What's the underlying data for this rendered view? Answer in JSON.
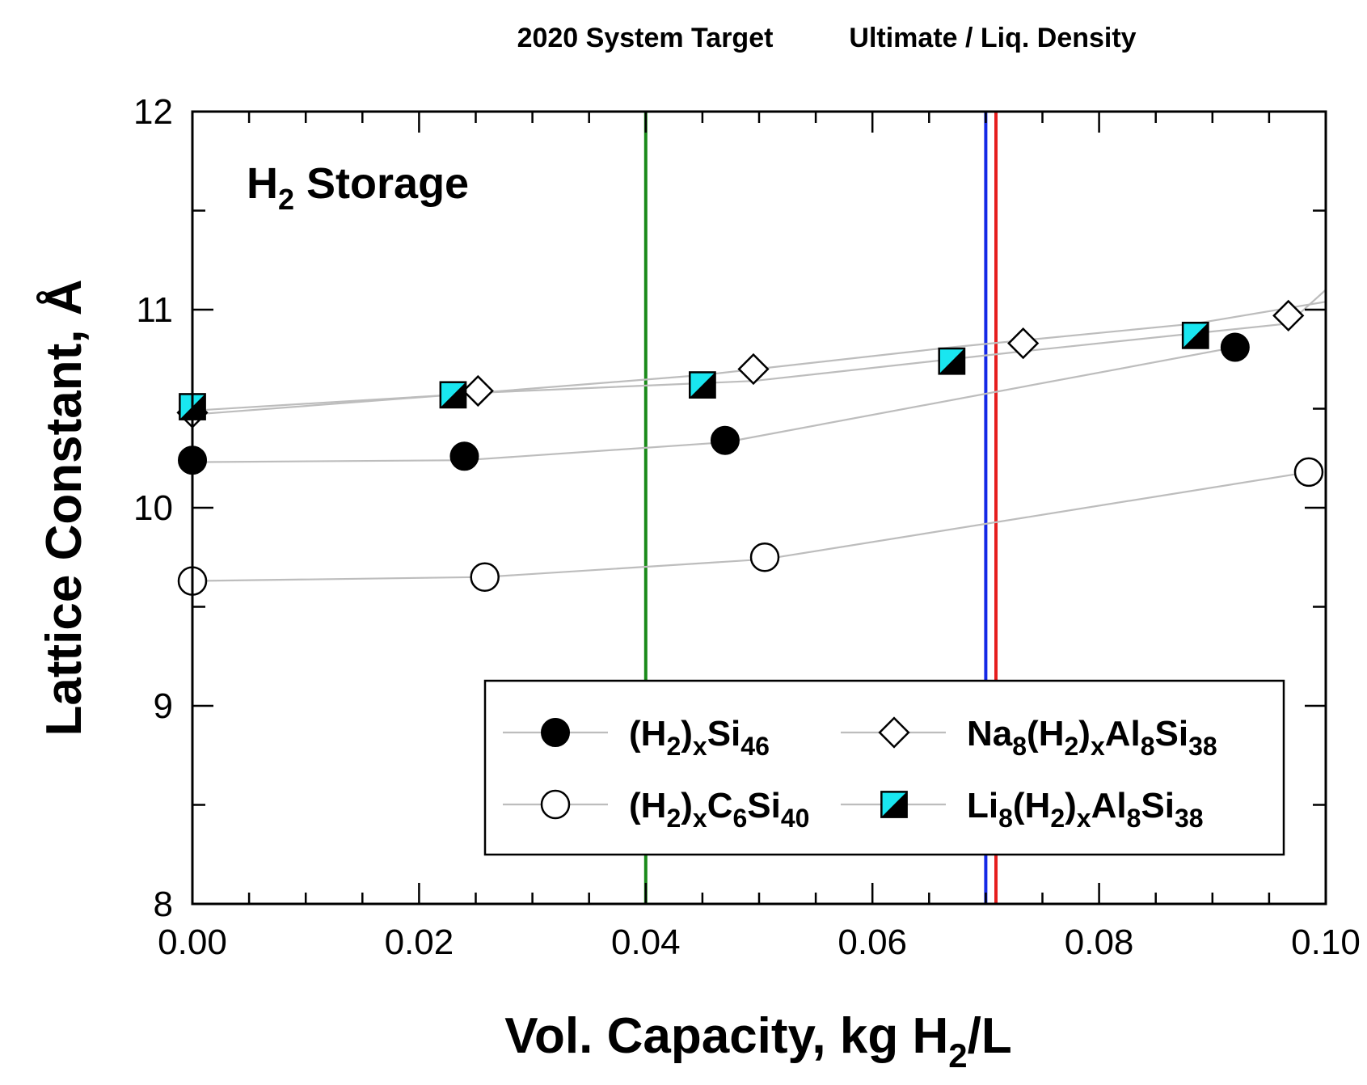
{
  "chart_data": {
    "type": "scatter",
    "title": "",
    "top_labels": {
      "target_2020": "2020 System Target",
      "ultimate": "Ultimate / Liq. Density"
    },
    "annotation": {
      "main": "H",
      "sub": "2",
      "rest": " Storage"
    },
    "xlabel": {
      "pre": "Vol. Capacity, kg H",
      "sub": "2",
      "post": "/L"
    },
    "ylabel": "Lattice Constant, Å",
    "xlim": [
      0.0,
      0.1
    ],
    "ylim": [
      8,
      12
    ],
    "xticks": [
      "0.00",
      "0.02",
      "0.04",
      "0.06",
      "0.08",
      "0.10"
    ],
    "yticks": [
      "8",
      "9",
      "10",
      "11",
      "12"
    ],
    "target_lines": [
      {
        "name": "2020 System Target",
        "x": 0.04,
        "color": "#1a8a1a"
      },
      {
        "name": "Ultimate",
        "x": 0.07,
        "color": "#1428e6"
      },
      {
        "name": "Liq. Density",
        "x": 0.0709,
        "color": "#e61e1e"
      }
    ],
    "series": [
      {
        "name": "(H2)xSi46",
        "legend_parts": [
          [
            "(H",
            ""
          ],
          [
            "2",
            "sub"
          ],
          [
            ")",
            ""
          ],
          [
            "x",
            "sub"
          ],
          [
            "Si",
            ""
          ],
          [
            "46",
            "sub"
          ]
        ],
        "marker": "filled-circle",
        "x": [
          0.0,
          0.024,
          0.047,
          0.092
        ],
        "y": [
          10.24,
          10.26,
          10.34,
          10.81
        ],
        "fit": [
          [
            0.0,
            10.23
          ],
          [
            0.024,
            10.24
          ],
          [
            0.047,
            10.33
          ],
          [
            0.092,
            10.81
          ]
        ]
      },
      {
        "name": "(H2)xC6Si40",
        "legend_parts": [
          [
            "(H",
            ""
          ],
          [
            "2",
            "sub"
          ],
          [
            ")",
            ""
          ],
          [
            "x",
            "sub"
          ],
          [
            "C",
            ""
          ],
          [
            "6",
            "sub"
          ],
          [
            "Si",
            ""
          ],
          [
            "40",
            "sub"
          ]
        ],
        "marker": "open-circle",
        "x": [
          0.0,
          0.0258,
          0.0505,
          0.0985
        ],
        "y": [
          9.63,
          9.65,
          9.75,
          10.18
        ],
        "fit": [
          [
            0.0,
            9.63
          ],
          [
            0.0258,
            9.65
          ],
          [
            0.0505,
            9.74
          ],
          [
            0.0985,
            10.18
          ]
        ]
      },
      {
        "name": "Na8(H2)xAl8Si38",
        "legend_parts": [
          [
            "Na",
            ""
          ],
          [
            "8",
            "sub"
          ],
          [
            "(H",
            ""
          ],
          [
            "2",
            "sub"
          ],
          [
            ")",
            ""
          ],
          [
            "x",
            "sub"
          ],
          [
            "Al",
            ""
          ],
          [
            "8",
            "sub"
          ],
          [
            "Si",
            ""
          ],
          [
            "38",
            "sub"
          ]
        ],
        "marker": "open-diamond",
        "x": [
          0.0,
          0.0252,
          0.0495,
          0.0733,
          0.0967
        ],
        "y": [
          10.48,
          10.59,
          10.7,
          10.83,
          10.97
        ],
        "fit": [
          [
            0.0,
            10.47
          ],
          [
            0.0252,
            10.58
          ],
          [
            0.0495,
            10.64
          ],
          [
            0.0733,
            10.79
          ],
          [
            0.0967,
            10.93
          ],
          [
            0.1,
            11.1
          ]
        ]
      },
      {
        "name": "Li8(H2)xAl8Si38",
        "legend_parts": [
          [
            "Li",
            ""
          ],
          [
            "8",
            "sub"
          ],
          [
            "(H",
            ""
          ],
          [
            "2",
            "sub"
          ],
          [
            ")",
            ""
          ],
          [
            "x",
            "sub"
          ],
          [
            "Al",
            ""
          ],
          [
            "8",
            "sub"
          ],
          [
            "Si",
            ""
          ],
          [
            "38",
            "sub"
          ]
        ],
        "marker": "half-filled-square",
        "x": [
          0.0,
          0.023,
          0.045,
          0.067,
          0.0885
        ],
        "y": [
          10.51,
          10.57,
          10.62,
          10.74,
          10.87
        ],
        "fit": [
          [
            0.0,
            10.49
          ],
          [
            0.023,
            10.57
          ],
          [
            0.045,
            10.67
          ],
          [
            0.067,
            10.81
          ],
          [
            0.0885,
            10.93
          ],
          [
            0.1,
            11.04
          ]
        ]
      }
    ],
    "colors": {
      "axis": "#000000",
      "fit_line": "#bdbdbd",
      "marker_fill_dark": "#000000",
      "marker_fill_cyan": "#19e6f0",
      "marker_open": "#ffffff"
    }
  }
}
